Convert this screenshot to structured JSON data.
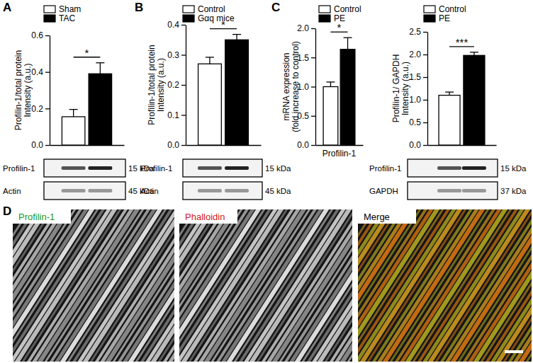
{
  "chart_data": [
    {
      "type": "bar",
      "panel": "A",
      "y_label": [
        "Profilin-1/total protein",
        "Intensity (a.u.)"
      ],
      "categories": [
        null
      ],
      "series": [
        {
          "name": "Sham",
          "color": "#ffffff",
          "values": [
            0.155
          ],
          "errors": [
            0.04
          ]
        },
        {
          "name": "TAC",
          "color": "#000000",
          "values": [
            0.39
          ],
          "errors": [
            0.06
          ]
        }
      ],
      "significance": [
        "*"
      ],
      "ylim": [
        0,
        0.6
      ],
      "yticks": [
        {
          "value": 0,
          "label": "0.0"
        },
        0.2,
        0.4,
        0.6
      ],
      "legend": "top-left",
      "blots": [
        {
          "label": "Profilin-1",
          "size": "15 kDa"
        },
        {
          "label": "Actin",
          "size": "45 kDa"
        }
      ]
    },
    {
      "type": "bar",
      "panel": "B",
      "y_label": [
        "Profilin-1/total protein",
        "Intensity (a.u.)"
      ],
      "categories": [
        null
      ],
      "series": [
        {
          "name": "Control",
          "color": "#ffffff",
          "values": [
            0.27
          ],
          "errors": [
            0.022
          ]
        },
        {
          "name": "Gαq mice",
          "color": "#000000",
          "values": [
            0.35
          ],
          "errors": [
            0.018
          ]
        }
      ],
      "significance": [
        "*"
      ],
      "ylim": [
        0,
        0.4
      ],
      "yticks": [
        {
          "value": 0,
          "label": "0.0"
        },
        0.1,
        0.2,
        0.3,
        0.4
      ],
      "legend": "top-left",
      "blots": [
        {
          "label": "Profilin-1",
          "size": "15 kDa"
        },
        {
          "label": "Actin",
          "size": "45 kDa"
        }
      ]
    },
    {
      "type": "bar",
      "panel": "C",
      "y_label": [
        "mRNA expression",
        "(fold increase to control)"
      ],
      "categories": [
        "Profilin-1"
      ],
      "series": [
        {
          "name": "Control",
          "color": "#ffffff",
          "values": [
            1.0
          ],
          "errors": [
            0.08
          ]
        },
        {
          "name": "PE",
          "color": "#000000",
          "values": [
            1.64
          ],
          "errors": [
            0.2
          ]
        }
      ],
      "significance": [
        "*"
      ],
      "ylim": [
        0,
        2.0
      ],
      "yticks": [
        {
          "value": 0,
          "label": "0.0"
        },
        {
          "value": 0.5,
          "label": "0.5"
        },
        {
          "value": 1,
          "label": "1.0"
        },
        {
          "value": 1.5,
          "label": "1.5"
        },
        {
          "value": 2,
          "label": "2.0"
        }
      ],
      "legend": "top-left"
    },
    {
      "type": "bar",
      "y_label": [
        "Profilin-1/ GAPDH",
        "Intensity (a.u.)"
      ],
      "categories": [
        null
      ],
      "series": [
        {
          "name": "Control",
          "color": "#ffffff",
          "values": [
            1.1
          ],
          "errors": [
            0.07
          ]
        },
        {
          "name": "PE",
          "color": "#000000",
          "values": [
            1.98
          ],
          "errors": [
            0.07
          ]
        }
      ],
      "significance": [
        "***"
      ],
      "ylim": [
        0,
        2.5
      ],
      "yticks": [
        {
          "value": 0,
          "label": "0.0"
        },
        {
          "value": 0.5,
          "label": "0.5"
        },
        {
          "value": 1,
          "label": "1.0"
        },
        {
          "value": 1.5,
          "label": "1.5"
        },
        {
          "value": 2,
          "label": "2.0"
        },
        {
          "value": 2.5,
          "label": "2.5"
        }
      ],
      "legend": "top-left",
      "blots": [
        {
          "label": "Profilin-1",
          "size": "15 kDa"
        },
        {
          "label": "GAPDH",
          "size": "37 kDa"
        }
      ]
    }
  ],
  "panel_d": {
    "panel": "D",
    "images": [
      {
        "label": "Profilin-1",
        "color": "#1a9a1a"
      },
      {
        "label": "Phalloidin",
        "color": "#d42020"
      },
      {
        "label": "Merge",
        "color": "#000000"
      }
    ]
  }
}
